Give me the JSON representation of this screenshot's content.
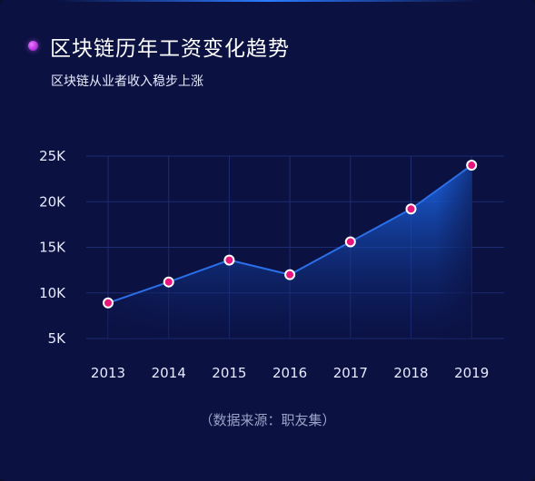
{
  "title": "区块链历年工资变化趋势",
  "subtitle": "区块链从业者收入稳步上涨",
  "source_note": "（数据来源：职友集）",
  "colors": {
    "background": "#0b1141",
    "line": "#2b6fe8",
    "area_top": "#1565e8",
    "marker_fill": "#e8157a",
    "marker_stroke": "#ffffff",
    "grid": "#1d2d73"
  },
  "chart_data": {
    "type": "area",
    "title": "区块链历年工资变化趋势",
    "subtitle": "区块链从业者收入稳步上涨",
    "categories": [
      "2013",
      "2014",
      "2015",
      "2016",
      "2017",
      "2018",
      "2019"
    ],
    "values": [
      8900,
      11200,
      13600,
      12000,
      15600,
      19200,
      24000
    ],
    "y_ticks": [
      5000,
      10000,
      15000,
      20000,
      25000
    ],
    "y_tick_labels": [
      "5K",
      "10K",
      "15K",
      "20K",
      "25K"
    ],
    "ylim": [
      5000,
      25000
    ],
    "xlabel": "",
    "ylabel": "",
    "grid": true,
    "markers": true
  }
}
